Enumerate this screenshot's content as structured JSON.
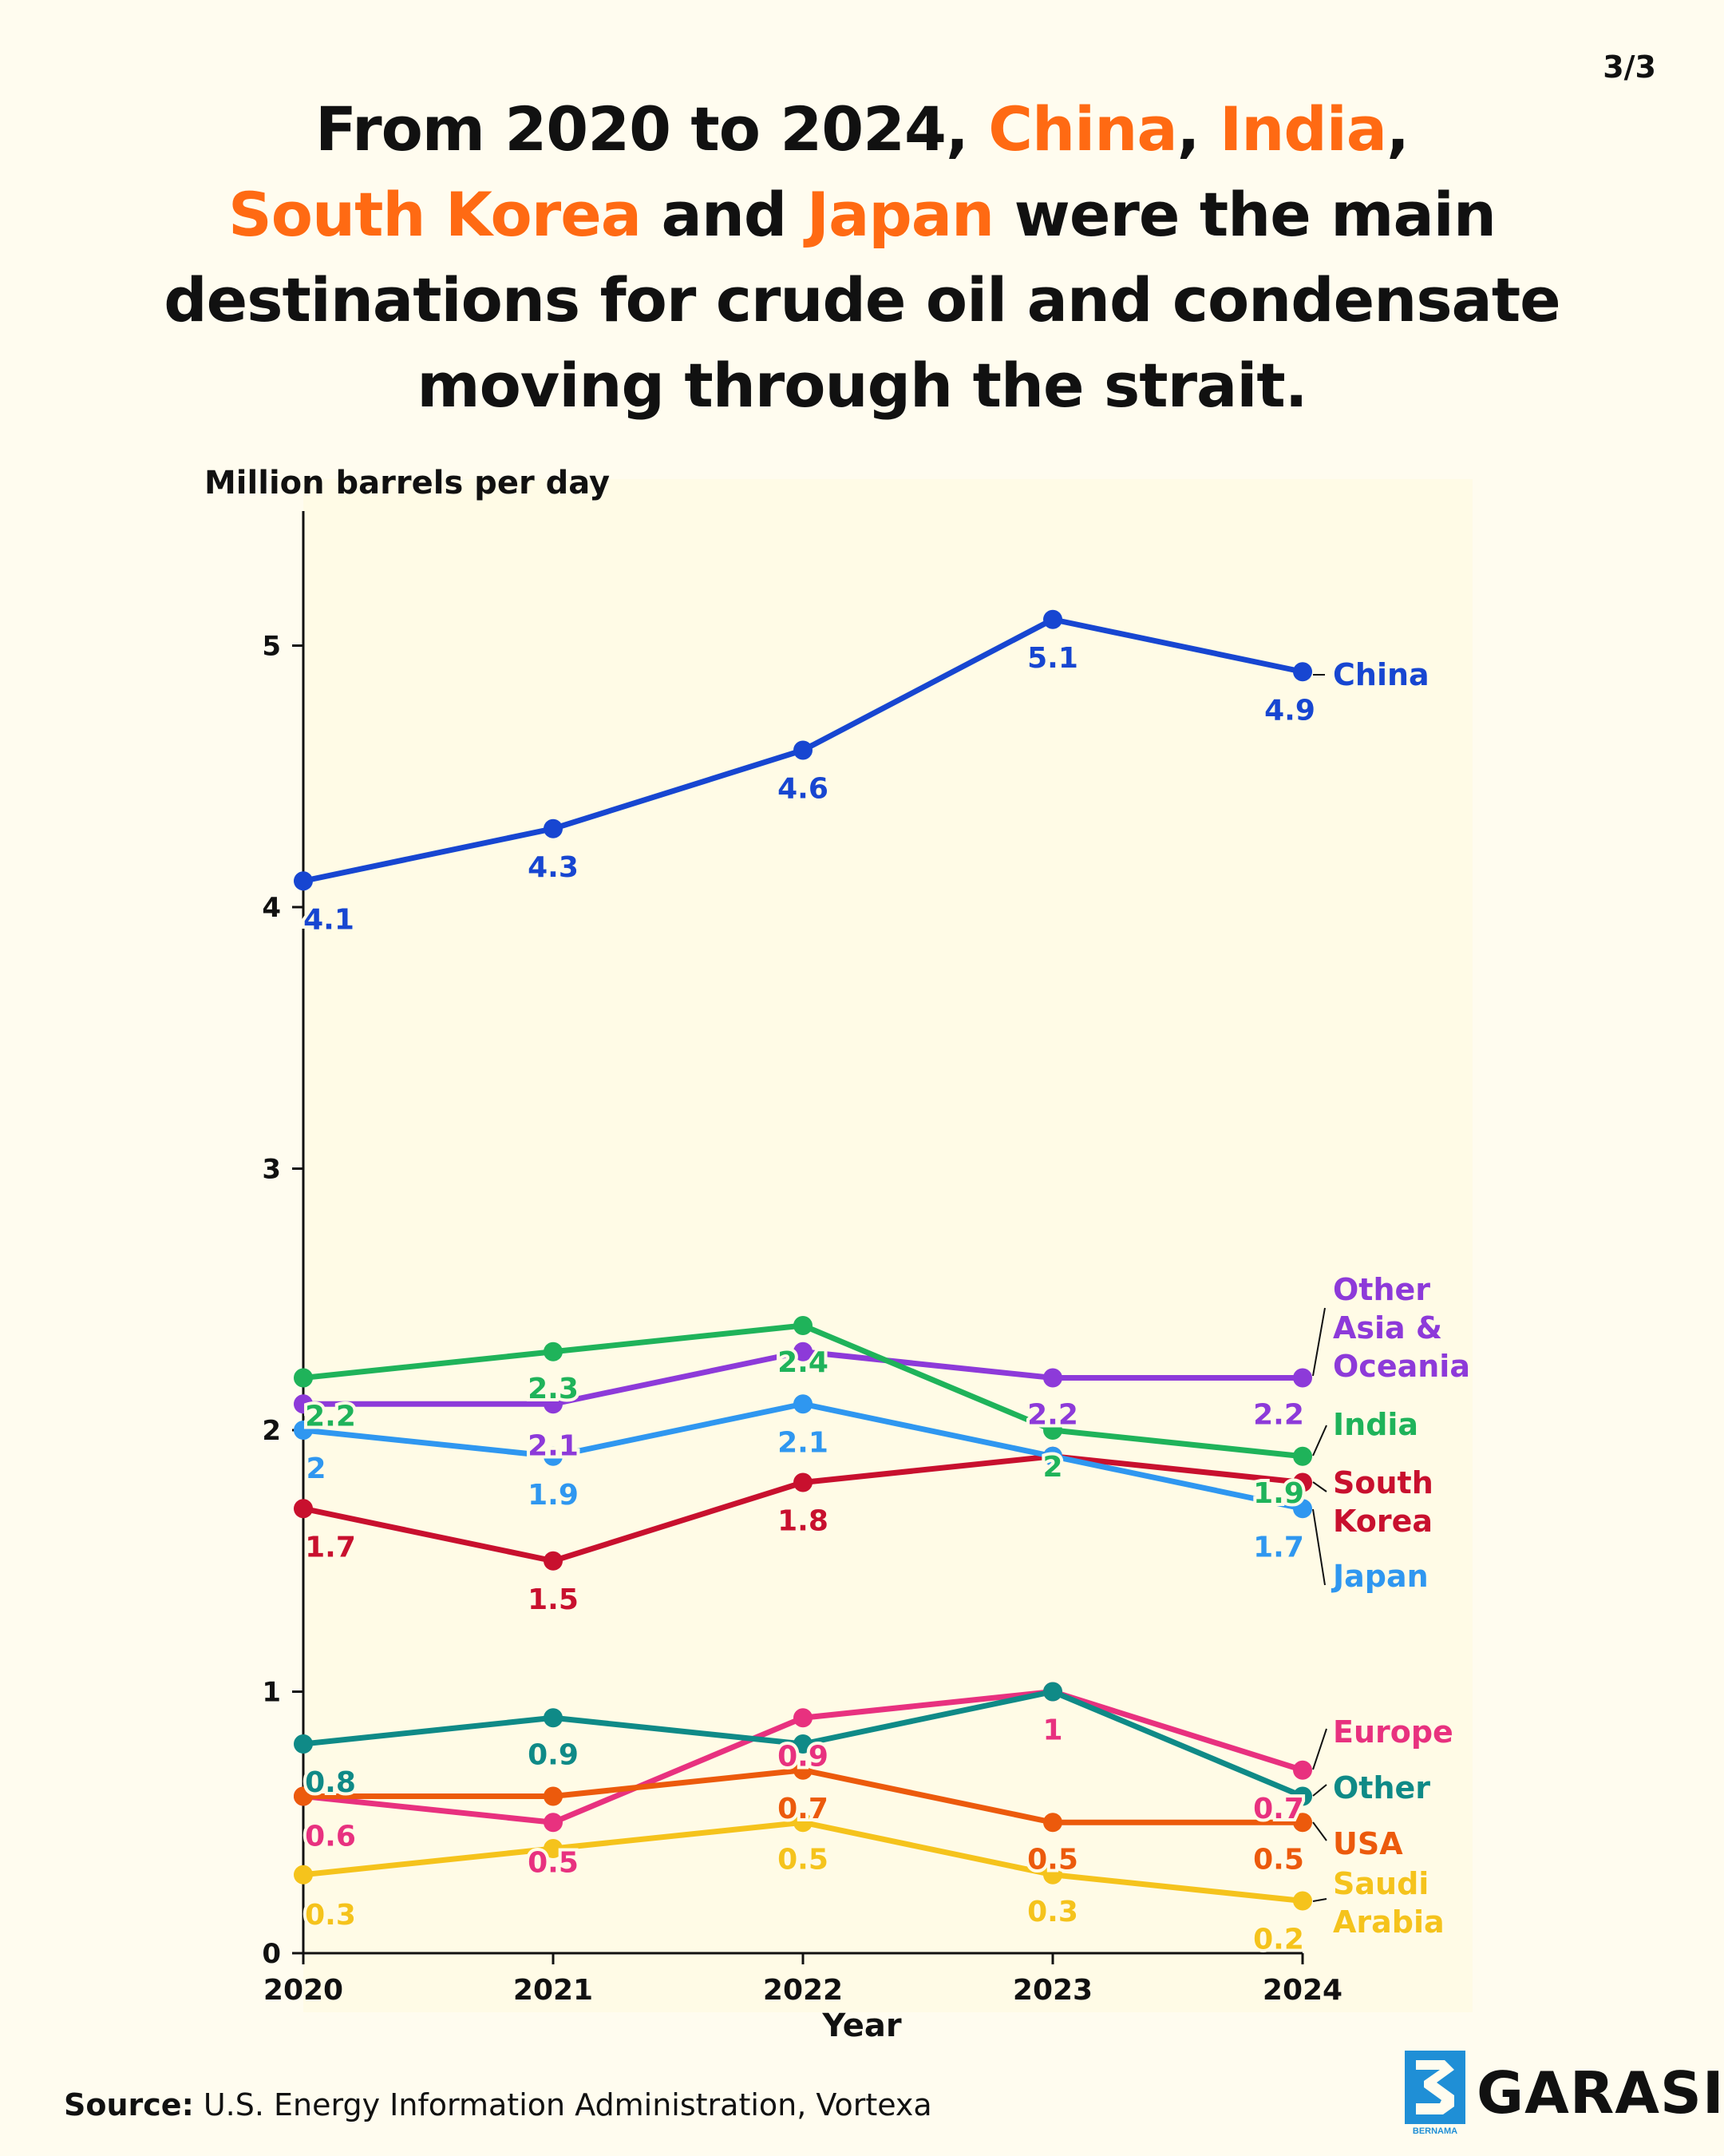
{
  "page_number": "3/3",
  "headline": {
    "l1_a": "From 2020 to 2024, ",
    "l1_china": "China",
    "l1_comma": ", ",
    "l1_india": "India",
    "l1_end": ",",
    "l2_sk": "South Korea",
    "l2_and": " and ",
    "l2_japan": "Japan",
    "l2_end": " were the main",
    "l3": "destinations for crude oil and condensate",
    "l4": "moving through the strait."
  },
  "source": {
    "label": "Source:",
    "text": " U.S. Energy Information Administration, Vortexa"
  },
  "brand": {
    "name": "GARASI.",
    "sub": "BERNAMA"
  },
  "colors": {
    "highlight": "#ff6a13",
    "background": "#fffcef",
    "plot_background": "#fffbe6"
  },
  "chart_data": {
    "type": "line",
    "title": "From 2020 to 2024, China, India, South Korea and Japan were the main destinations for crude oil and condensate moving through the strait.",
    "xlabel": "Year",
    "ylabel": "Million barrels per day",
    "x": [
      "2020",
      "2021",
      "2022",
      "2023",
      "2024"
    ],
    "ylim": [
      0,
      5.5
    ],
    "yticks": [
      0,
      1,
      2,
      3,
      4,
      5
    ],
    "grid": false,
    "series": [
      {
        "name": "China",
        "label_lines": [
          "China"
        ],
        "color": "#1746d1",
        "values": [
          4.1,
          4.3,
          4.6,
          5.1,
          4.9
        ],
        "value_labels": [
          "4.1",
          "4.3",
          "4.6",
          "5.1",
          "4.9"
        ]
      },
      {
        "name": "Other Asia & Oceania",
        "label_lines": [
          "Other",
          "Asia &",
          "Oceania"
        ],
        "color": "#8d3ad9",
        "values": [
          2.1,
          2.1,
          2.3,
          2.2,
          2.2
        ],
        "value_labels": [
          "",
          "2.1",
          "",
          "2.2",
          "2.2"
        ]
      },
      {
        "name": "India",
        "label_lines": [
          "India"
        ],
        "color": "#1fb35a",
        "values": [
          2.2,
          2.3,
          2.4,
          2.0,
          1.9
        ],
        "value_labels": [
          "2.2",
          "2.3",
          "2.4",
          "2",
          "1.9"
        ]
      },
      {
        "name": "South Korea",
        "label_lines": [
          "South",
          "Korea"
        ],
        "color": "#c8102e",
        "values": [
          1.7,
          1.5,
          1.8,
          1.9,
          1.8
        ],
        "value_labels": [
          "1.7",
          "1.5",
          "1.8",
          "",
          ""
        ]
      },
      {
        "name": "Japan",
        "label_lines": [
          "Japan"
        ],
        "color": "#2f97f0",
        "values": [
          2.0,
          1.9,
          2.1,
          1.9,
          1.7
        ],
        "value_labels": [
          "2",
          "1.9",
          "2.1",
          "",
          "1.7"
        ]
      },
      {
        "name": "Europe",
        "label_lines": [
          "Europe"
        ],
        "color": "#e8317f",
        "values": [
          0.6,
          0.5,
          0.9,
          1.0,
          0.7
        ],
        "value_labels": [
          "0.6",
          "0.5",
          "0.9",
          "1",
          "0.7"
        ]
      },
      {
        "name": "Other",
        "label_lines": [
          "Other"
        ],
        "color": "#0f8a87",
        "values": [
          0.8,
          0.9,
          0.8,
          1.0,
          0.6
        ],
        "value_labels": [
          "0.8",
          "0.9",
          "",
          "",
          ""
        ]
      },
      {
        "name": "USA",
        "label_lines": [
          "USA"
        ],
        "color": "#ec5a0c",
        "values": [
          0.6,
          0.6,
          0.7,
          0.5,
          0.5
        ],
        "value_labels": [
          "",
          "",
          "0.7",
          "0.5",
          "0.5"
        ]
      },
      {
        "name": "Saudi Arabia",
        "label_lines": [
          "Saudi",
          "Arabia"
        ],
        "color": "#f5c31c",
        "values": [
          0.3,
          0.4,
          0.5,
          0.3,
          0.2
        ],
        "value_labels": [
          "0.3",
          "",
          "0.5",
          "0.3",
          "0.2"
        ]
      }
    ]
  }
}
